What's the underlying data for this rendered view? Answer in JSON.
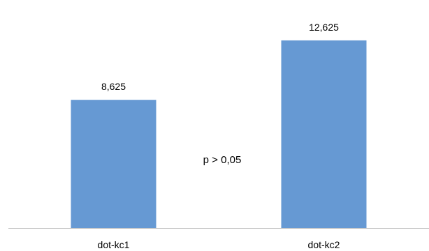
{
  "chart_data": {
    "type": "bar",
    "categories": [
      "dot-kc1",
      "dot-kc2"
    ],
    "values": [
      8.625,
      12.625
    ],
    "data_labels": [
      "8,625",
      "12,625"
    ],
    "annotation": "p > 0,05",
    "ylim": [
      0,
      14.5
    ],
    "grid": false,
    "legend": "none",
    "colors": {
      "bar": "#6699d3",
      "axis": "#bfbfbf",
      "text": "#000000"
    }
  }
}
